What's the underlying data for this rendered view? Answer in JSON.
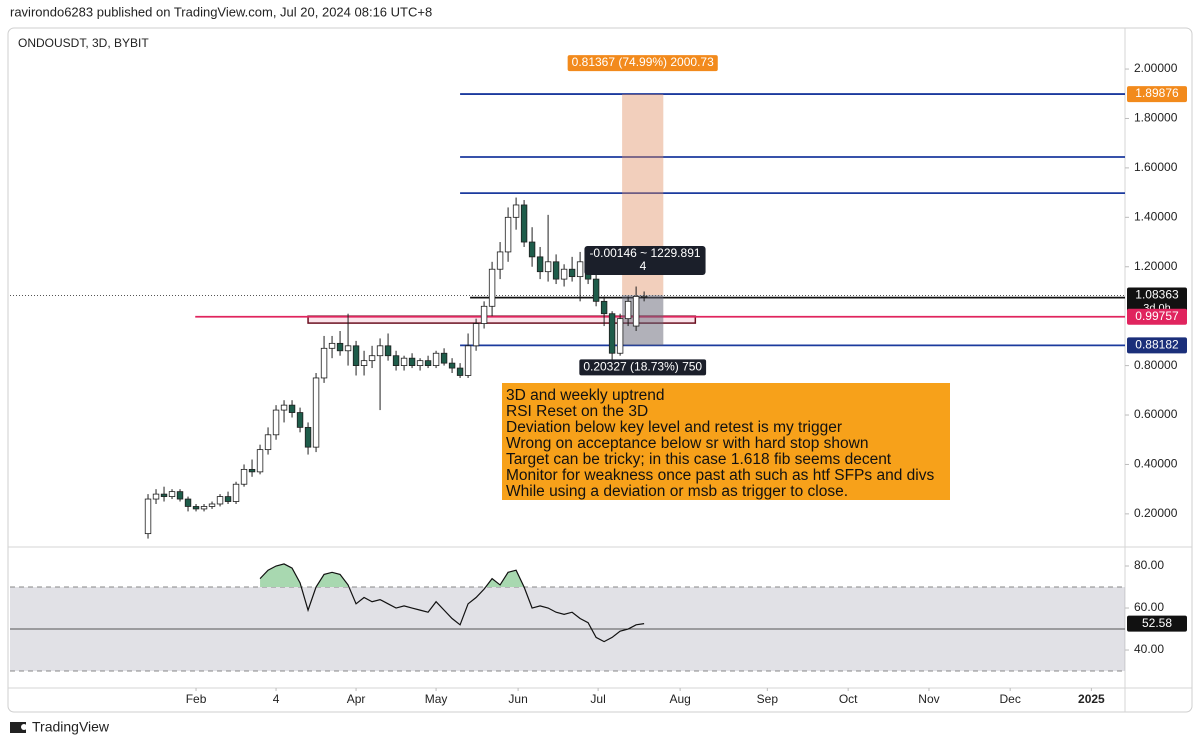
{
  "header": {
    "publisher": "ravirondo6283 published on TradingView.com, Jul 20, 2024 08:16 UTC+8",
    "brand": "TradingView"
  },
  "chart_data": [
    {
      "type": "candlestick",
      "title": "ONDOUSDT, 3D, BYBIT",
      "xlim": [
        -17.25,
        122.1
      ],
      "xticks": [
        {
          "value": 6,
          "label": "Feb"
        },
        {
          "value": 16,
          "label": "4"
        },
        {
          "value": 26,
          "label": "Apr"
        },
        {
          "value": 36,
          "label": "May"
        },
        {
          "value": 46.25,
          "label": "Jun"
        },
        {
          "value": 56.25,
          "label": "Jul"
        },
        {
          "value": 66.5,
          "label": "Aug"
        },
        {
          "value": 77.4,
          "label": "Sep"
        },
        {
          "value": 87.5,
          "label": "Oct"
        },
        {
          "value": 97.6,
          "label": "Nov"
        },
        {
          "value": 107.75,
          "label": "Dec"
        },
        {
          "value": 117.9,
          "label": "2025"
        }
      ],
      "ylim": [
        0.07,
        2.158
      ],
      "yticks": [
        {
          "value": 0.2,
          "label": "0.20000"
        },
        {
          "value": 0.4,
          "label": "0.40000"
        },
        {
          "value": 0.6,
          "label": "0.60000"
        },
        {
          "value": 0.8,
          "label": "0.80000"
        },
        {
          "value": 1.2,
          "label": "1.20000"
        },
        {
          "value": 1.4,
          "label": "1.40000"
        },
        {
          "value": 1.6,
          "label": "1.60000"
        },
        {
          "value": 1.8,
          "label": "1.80000"
        },
        {
          "value": 2,
          "label": "2.00000"
        }
      ],
      "up_color": "#ffffff",
      "down_color": "#1e5c4a",
      "open": [
        0.12,
        0.26,
        0.28,
        0.27,
        0.29,
        0.26,
        0.23,
        0.22,
        0.23,
        0.24,
        0.27,
        0.25,
        0.32,
        0.38,
        0.37,
        0.46,
        0.52,
        0.62,
        0.64,
        0.61,
        0.55,
        0.47,
        0.75,
        0.87,
        0.89,
        0.86,
        0.88,
        0.8,
        0.82,
        0.84,
        0.88,
        0.84,
        0.8,
        0.83,
        0.8,
        0.82,
        0.8,
        0.85,
        0.81,
        0.79,
        0.76,
        0.88,
        0.97,
        1.04,
        1.19,
        1.26,
        1.4,
        1.45,
        1.3,
        1.24,
        1.18,
        1.22,
        1.15,
        1.19,
        1.16,
        1.22,
        1.15,
        1.06,
        1.01,
        0.85,
        0.99,
        0.96,
        1.08
      ],
      "high": [
        0.28,
        0.3,
        0.31,
        0.3,
        0.3,
        0.27,
        0.24,
        0.24,
        0.25,
        0.28,
        0.29,
        0.33,
        0.4,
        0.42,
        0.48,
        0.55,
        0.64,
        0.66,
        0.66,
        0.63,
        0.57,
        0.77,
        0.92,
        0.92,
        0.94,
        1.01,
        0.9,
        0.86,
        0.88,
        0.91,
        0.93,
        0.86,
        0.84,
        0.85,
        0.83,
        0.84,
        0.86,
        0.87,
        0.83,
        0.81,
        0.93,
        0.99,
        1.06,
        1.22,
        1.3,
        1.44,
        1.48,
        1.47,
        1.36,
        1.28,
        1.41,
        1.25,
        1.21,
        1.24,
        1.26,
        1.25,
        1.19,
        1.08,
        1.02,
        1.01,
        1.08,
        1.12,
        1.1
      ],
      "low": [
        0.1,
        0.24,
        0.25,
        0.26,
        0.25,
        0.21,
        0.21,
        0.21,
        0.22,
        0.23,
        0.24,
        0.24,
        0.31,
        0.35,
        0.36,
        0.44,
        0.5,
        0.57,
        0.59,
        0.53,
        0.44,
        0.45,
        0.73,
        0.83,
        0.84,
        0.8,
        0.76,
        0.76,
        0.79,
        0.62,
        0.82,
        0.78,
        0.78,
        0.79,
        0.78,
        0.79,
        0.79,
        0.8,
        0.77,
        0.75,
        0.75,
        0.86,
        0.95,
        1.0,
        1.15,
        1.22,
        1.35,
        1.28,
        1.2,
        1.15,
        1.14,
        1.13,
        1.12,
        1.14,
        1.06,
        1.13,
        1.04,
        0.96,
        0.82,
        0.84,
        0.96,
        0.94,
        1.06
      ],
      "close": [
        0.26,
        0.28,
        0.27,
        0.29,
        0.26,
        0.23,
        0.22,
        0.23,
        0.24,
        0.27,
        0.25,
        0.32,
        0.38,
        0.37,
        0.46,
        0.52,
        0.62,
        0.64,
        0.61,
        0.55,
        0.47,
        0.75,
        0.87,
        0.89,
        0.86,
        0.88,
        0.8,
        0.82,
        0.84,
        0.88,
        0.84,
        0.8,
        0.83,
        0.8,
        0.82,
        0.8,
        0.85,
        0.81,
        0.79,
        0.76,
        0.88,
        0.97,
        1.04,
        1.19,
        1.26,
        1.4,
        1.45,
        1.3,
        1.24,
        1.18,
        1.22,
        1.15,
        1.19,
        1.16,
        1.22,
        1.15,
        1.06,
        1.01,
        0.85,
        0.99,
        1.06,
        1.08,
        1.08
      ],
      "current_price": 1.08363,
      "countdown": "3d 0h",
      "price_labels": [
        {
          "value": 1.89876,
          "color": "#f28a1c"
        },
        {
          "value": 1.08363,
          "color": "#111111"
        },
        {
          "value": 0.99757,
          "color": "#e0245e"
        },
        {
          "value": 0.88182,
          "color": "#1b2f7a"
        }
      ],
      "levels": [
        {
          "value": 1.89876,
          "start": 39,
          "color": "#1b3a9e"
        },
        {
          "value": 1.644,
          "start": 39,
          "color": "#1b3a9e"
        },
        {
          "value": 1.498,
          "start": 39,
          "color": "#1b3a9e"
        },
        {
          "value": 0.88182,
          "start": 39,
          "color": "#1b3a9e"
        },
        {
          "value": 1.075,
          "start": 40.25,
          "color": "#111111"
        },
        {
          "value": 0.99757,
          "start": 5.9,
          "color": "#e0245e"
        }
      ],
      "zone": {
        "low": 0.972,
        "high": 1.0,
        "start": 20,
        "end": 68.4
      },
      "position": {
        "start": 59.25,
        "end": 64.4,
        "entry": 1.08509,
        "target": 1.89876,
        "stop": 0.88182,
        "target_label": "0.81367 (74.99%) 2000.73",
        "stop_label": "0.20327 (18.73%) 750",
        "pnl_label": "-0.00146 ~ 1229.891",
        "pnl_qty": 4
      },
      "note": [
        "3D and weekly uptrend",
        "RSI Reset on the 3D",
        "Deviation below key level and retest is my trigger",
        "Wrong on acceptance below sr with hard stop shown",
        "Target can be tricky; in this case 1.618 fib seems decent",
        "Monitor for weakness once past ath such as htf SFPs and divs",
        "While using a deviation or msb as trigger to close."
      ]
    },
    {
      "type": "line",
      "ylim": [
        22.4,
        88.1
      ],
      "yticks": [
        {
          "value": 40,
          "label": "40.00"
        },
        {
          "value": 60,
          "label": "60.00"
        },
        {
          "value": 80,
          "label": "80.00"
        }
      ],
      "bands": [
        70,
        50,
        30
      ],
      "overbought_fill": "#a8d8b0",
      "series": [
        {
          "color": "#111111",
          "values": [
            null,
            null,
            null,
            null,
            null,
            null,
            null,
            null,
            null,
            null,
            null,
            null,
            null,
            null,
            74,
            78,
            80,
            81,
            79,
            72,
            59,
            70,
            76,
            77,
            76,
            71,
            62,
            65,
            63,
            64,
            62,
            60,
            61,
            60,
            59,
            58,
            63,
            59,
            55,
            52,
            62,
            65,
            69,
            74,
            71,
            77,
            78,
            70,
            60,
            61,
            60,
            58,
            57,
            58,
            55,
            53,
            46,
            44,
            46,
            49,
            50,
            52,
            52.58
          ]
        }
      ],
      "last_value": 52.58
    }
  ]
}
